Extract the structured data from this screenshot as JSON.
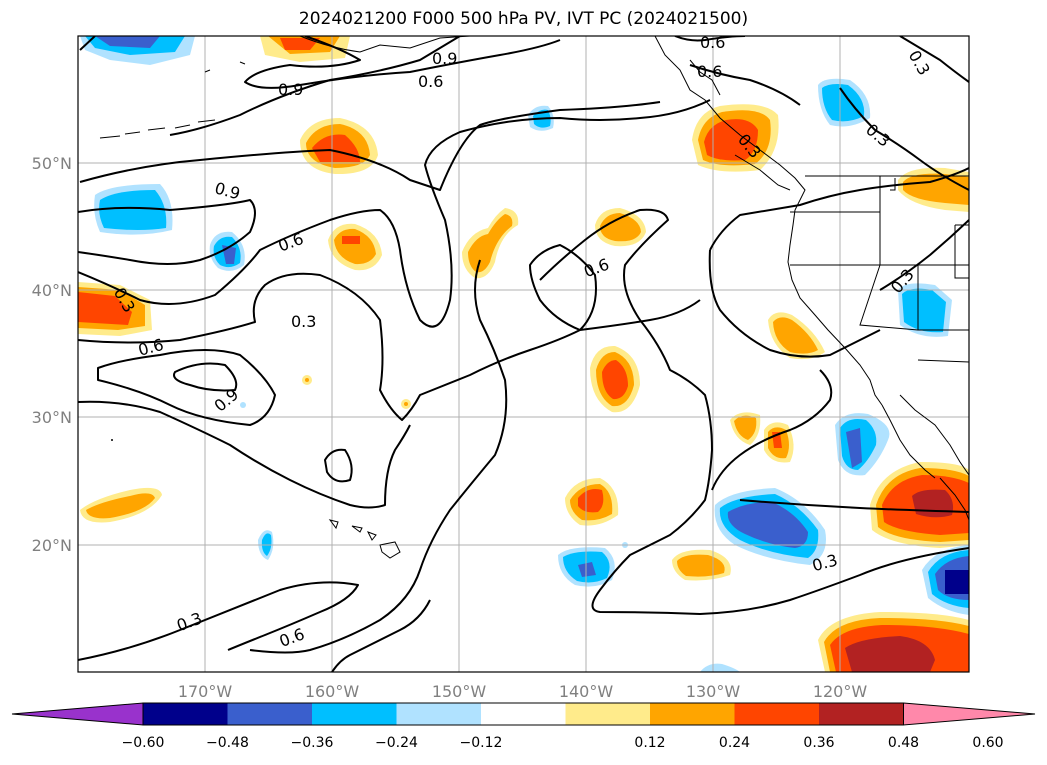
{
  "title": "2024021200 F000 500 hPa PV, IVT PC (2024021500)",
  "lat_labels": [
    "50°N",
    "40°N",
    "30°N",
    "20°N"
  ],
  "lon_labels": [
    "170°W",
    "160°W",
    "150°W",
    "140°W",
    "130°W",
    "120°W"
  ],
  "contour_labels": [
    "0.9",
    "0.6",
    "0.9",
    "0.6",
    "0.3",
    "0.9",
    "0.6",
    "0.3",
    "0.6",
    "0.3",
    "0.6",
    "0.9",
    "0.6",
    "0.3",
    "0.3",
    "0.3",
    "0.3",
    "0.6",
    "0.3"
  ],
  "colorbar": {
    "colors": [
      "#9932cc",
      "#00008b",
      "#3a5fcd",
      "#00bfff",
      "#b0e2ff",
      "#ffffff",
      "#ffeb8b",
      "#ffa500",
      "#ff4500",
      "#b22222",
      "#ff88aa"
    ],
    "tick_labels": [
      "−0.60",
      "−0.48",
      "−0.36",
      "−0.24",
      "−0.12",
      "0.12",
      "0.24",
      "0.36",
      "0.48",
      "0.60"
    ]
  }
}
